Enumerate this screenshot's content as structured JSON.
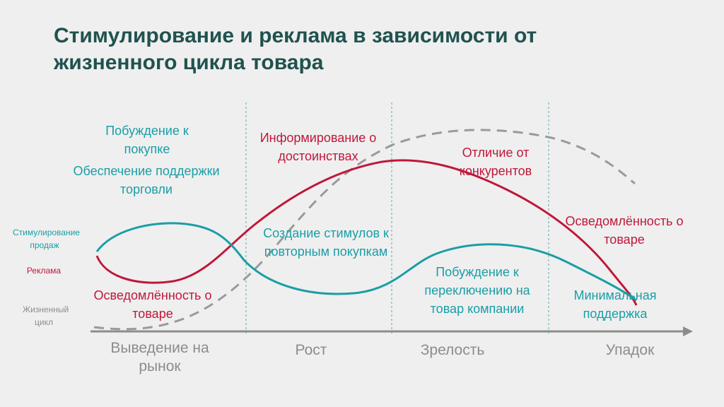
{
  "title": {
    "line1": "Стимулирование и реклама в зависимости от",
    "line2": "жизненного цикла товара"
  },
  "legend": {
    "stimulation": "Стимулирование продаж",
    "advertising": "Реклама",
    "lifecycle": "Жизненный цикл"
  },
  "stages": [
    "Выведение на рынок",
    "Рост",
    "Зрелость",
    "Упадок"
  ],
  "annotations": {
    "intro_teal_1": "Побуждение к покупке",
    "intro_teal_2": "Обеспечение поддержки торговли",
    "intro_red": "Осведомлённость о товаре",
    "growth_red": "Информирование о достоинствах",
    "growth_teal": "Создание стимулов к повторным покупкам",
    "maturity_red": "Отличие от конкурентов",
    "maturity_teal": "Побуждение к переключению на товар компании",
    "decline_red": "Осведомлённость о товаре",
    "decline_teal": "Минимальная поддержка"
  },
  "colors": {
    "title": "#20524f",
    "stimulation": "#1a9ea6",
    "advertising": "#c0173a",
    "lifecycle": "#9a9a9a",
    "axis": "#8c8c8c",
    "divider": "#5aa9b5",
    "background": "#efefef"
  }
}
